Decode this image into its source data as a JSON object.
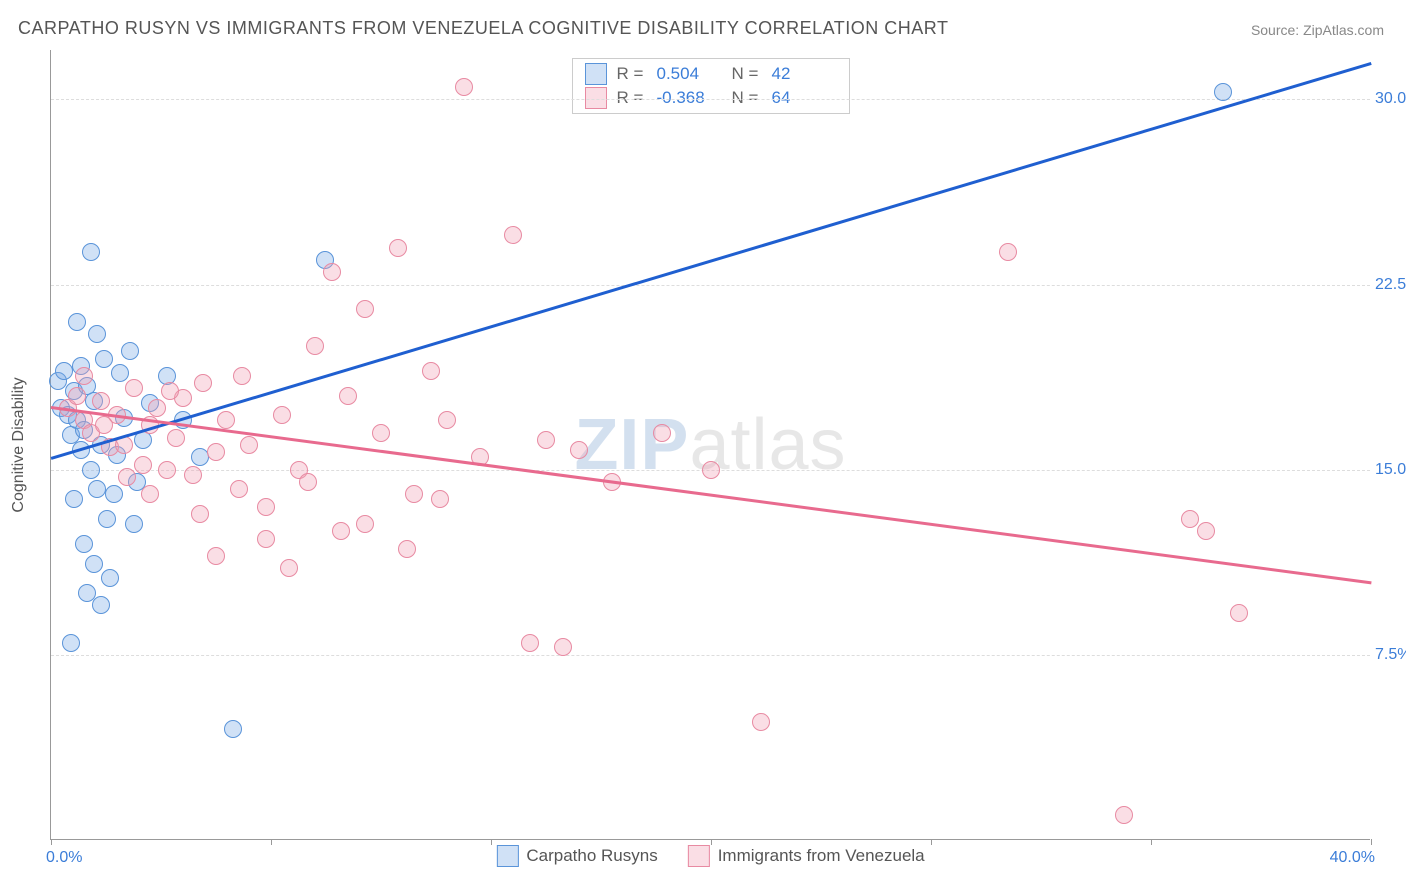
{
  "title": "CARPATHO RUSYN VS IMMIGRANTS FROM VENEZUELA COGNITIVE DISABILITY CORRELATION CHART",
  "source": "Source: ZipAtlas.com",
  "ylabel": "Cognitive Disability",
  "watermark": {
    "z": "ZIP",
    "rest": "atlas"
  },
  "chart": {
    "type": "scatter",
    "xlim": [
      0,
      40
    ],
    "ylim": [
      0,
      32
    ],
    "background_color": "#ffffff",
    "grid_color": "#dddddd",
    "axis_color": "#999999",
    "text_color": "#555555",
    "tick_color": "#3b7dd8",
    "yticks": [
      7.5,
      15.0,
      22.5,
      30.0
    ],
    "ytick_labels": [
      "7.5%",
      "15.0%",
      "22.5%",
      "30.0%"
    ],
    "xtick_positions": [
      0,
      6.67,
      13.33,
      20,
      26.67,
      33.33,
      40
    ],
    "xlabel_start": "0.0%",
    "xlabel_end": "40.0%",
    "marker_radius": 9,
    "marker_opacity": 0.55,
    "line_width": 2.5
  },
  "series": [
    {
      "name": "Carpatho Rusyns",
      "color": "#6fa8e8",
      "fill": "rgba(120,170,230,0.35)",
      "stroke": "#5a94d9",
      "R": "0.504",
      "N": "42",
      "trend": {
        "x1": 0,
        "y1": 15.5,
        "x2": 40,
        "y2": 31.5,
        "color": "#1f5fd0"
      },
      "points": [
        [
          0.2,
          18.6
        ],
        [
          0.3,
          17.5
        ],
        [
          0.4,
          19.0
        ],
        [
          0.5,
          17.2
        ],
        [
          0.6,
          16.4
        ],
        [
          0.7,
          18.2
        ],
        [
          0.8,
          17.0
        ],
        [
          0.9,
          15.8
        ],
        [
          1.0,
          16.6
        ],
        [
          1.1,
          18.4
        ],
        [
          1.2,
          15.0
        ],
        [
          1.3,
          17.8
        ],
        [
          1.4,
          14.2
        ],
        [
          1.5,
          16.0
        ],
        [
          1.6,
          19.5
        ],
        [
          1.7,
          13.0
        ],
        [
          1.2,
          23.8
        ],
        [
          0.8,
          21.0
        ],
        [
          2.0,
          15.6
        ],
        [
          2.2,
          17.1
        ],
        [
          2.4,
          19.8
        ],
        [
          2.6,
          14.5
        ],
        [
          2.8,
          16.2
        ],
        [
          3.0,
          17.7
        ],
        [
          1.0,
          12.0
        ],
        [
          1.3,
          11.2
        ],
        [
          0.7,
          13.8
        ],
        [
          1.8,
          10.6
        ],
        [
          1.1,
          10.0
        ],
        [
          1.5,
          9.5
        ],
        [
          0.6,
          8.0
        ],
        [
          1.4,
          20.5
        ],
        [
          2.1,
          18.9
        ],
        [
          8.3,
          23.5
        ],
        [
          5.5,
          4.5
        ],
        [
          4.0,
          17.0
        ],
        [
          4.5,
          15.5
        ],
        [
          3.5,
          18.8
        ],
        [
          35.5,
          30.3
        ],
        [
          1.9,
          14.0
        ],
        [
          2.5,
          12.8
        ],
        [
          0.9,
          19.2
        ]
      ]
    },
    {
      "name": "Immigrants from Venezuela",
      "color": "#f0a0b4",
      "fill": "rgba(240,160,180,0.35)",
      "stroke": "#e88aa2",
      "R": "-0.368",
      "N": "64",
      "trend": {
        "x1": 0,
        "y1": 17.6,
        "x2": 40,
        "y2": 10.5,
        "color": "#e86a8e"
      },
      "points": [
        [
          0.5,
          17.5
        ],
        [
          0.8,
          18.0
        ],
        [
          1.0,
          17.0
        ],
        [
          1.2,
          16.5
        ],
        [
          1.5,
          17.8
        ],
        [
          1.8,
          15.9
        ],
        [
          2.0,
          17.2
        ],
        [
          2.2,
          16.0
        ],
        [
          2.5,
          18.3
        ],
        [
          2.8,
          15.2
        ],
        [
          3.0,
          16.8
        ],
        [
          3.2,
          17.5
        ],
        [
          3.5,
          15.0
        ],
        [
          3.8,
          16.3
        ],
        [
          4.0,
          17.9
        ],
        [
          4.3,
          14.8
        ],
        [
          4.6,
          18.5
        ],
        [
          5.0,
          15.7
        ],
        [
          5.3,
          17.0
        ],
        [
          5.7,
          14.2
        ],
        [
          6.0,
          16.0
        ],
        [
          6.5,
          13.5
        ],
        [
          7.0,
          17.2
        ],
        [
          7.5,
          15.0
        ],
        [
          8.0,
          20.0
        ],
        [
          8.5,
          23.0
        ],
        [
          9.0,
          18.0
        ],
        [
          9.5,
          21.5
        ],
        [
          10.0,
          16.5
        ],
        [
          10.5,
          24.0
        ],
        [
          11.0,
          14.0
        ],
        [
          11.5,
          19.0
        ],
        [
          12.0,
          17.0
        ],
        [
          12.5,
          30.5
        ],
        [
          13.0,
          15.5
        ],
        [
          14.0,
          24.5
        ],
        [
          15.0,
          16.2
        ],
        [
          16.0,
          15.8
        ],
        [
          17.0,
          14.5
        ],
        [
          14.5,
          8.0
        ],
        [
          15.5,
          7.8
        ],
        [
          18.5,
          16.5
        ],
        [
          20.0,
          15.0
        ],
        [
          21.5,
          4.8
        ],
        [
          6.5,
          12.2
        ],
        [
          7.2,
          11.0
        ],
        [
          8.8,
          12.5
        ],
        [
          5.0,
          11.5
        ],
        [
          9.5,
          12.8
        ],
        [
          10.8,
          11.8
        ],
        [
          29.0,
          23.8
        ],
        [
          34.5,
          13.0
        ],
        [
          35.0,
          12.5
        ],
        [
          36.0,
          9.2
        ],
        [
          3.0,
          14.0
        ],
        [
          4.5,
          13.2
        ],
        [
          5.8,
          18.8
        ],
        [
          7.8,
          14.5
        ],
        [
          11.8,
          13.8
        ],
        [
          32.5,
          1.0
        ],
        [
          1.0,
          18.8
        ],
        [
          1.6,
          16.8
        ],
        [
          2.3,
          14.7
        ],
        [
          3.6,
          18.2
        ]
      ]
    }
  ],
  "legend_top_labels": {
    "R": "R =",
    "N": "N ="
  },
  "legend_bottom": [
    {
      "label": "Carpatho Rusyns",
      "series": 0
    },
    {
      "label": "Immigrants from Venezuela",
      "series": 1
    }
  ]
}
